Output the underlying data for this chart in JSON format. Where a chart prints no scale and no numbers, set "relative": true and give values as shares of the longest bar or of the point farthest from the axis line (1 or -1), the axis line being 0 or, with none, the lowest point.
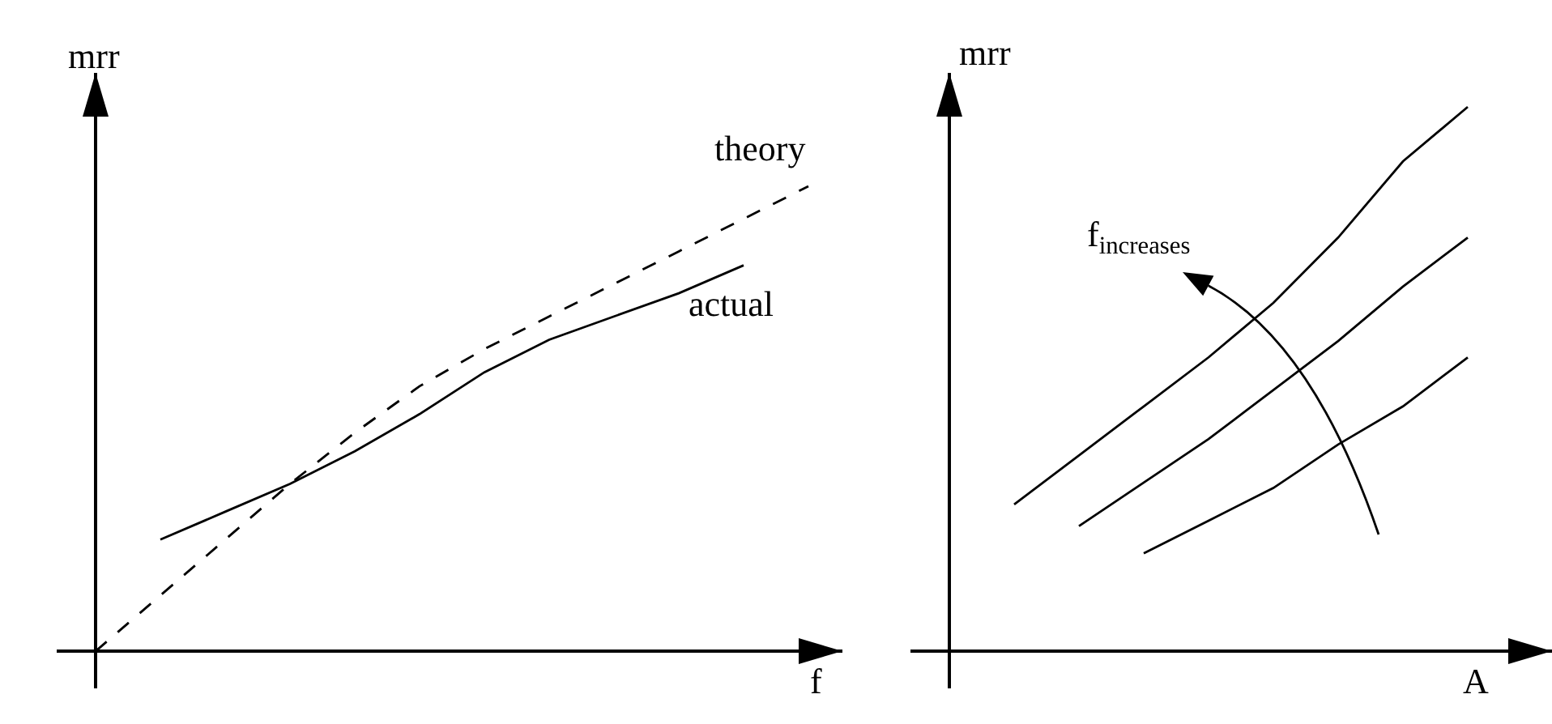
{
  "chart_data": [
    {
      "type": "line",
      "relative": true,
      "xlabel": "f",
      "ylabel": "mrr",
      "categories": [
        null,
        null,
        null,
        null,
        null,
        null,
        null,
        null,
        null,
        null,
        null,
        null
      ],
      "series": [
        {
          "name": "theory",
          "color": "#000000",
          "line_style": "dashed",
          "values": [
            0,
            0.12,
            0.24,
            0.36,
            0.47,
            0.57,
            0.65,
            0.72,
            0.79,
            0.86,
            0.93,
            1
          ]
        },
        {
          "name": "actual",
          "color": "#000000",
          "line_style": "solid",
          "values": [
            null,
            0.24,
            0.3,
            0.36,
            0.43,
            0.51,
            0.6,
            0.67,
            0.72,
            0.77,
            0.83,
            null
          ]
        }
      ]
    },
    {
      "type": "line",
      "relative": true,
      "xlabel": "A",
      "ylabel": "mrr",
      "annotations": [
        "f$_{increases}$"
      ],
      "categories": [
        null,
        null,
        null,
        null,
        null,
        null,
        null,
        null,
        null,
        null
      ],
      "series": [
        {
          "color": "#000000",
          "values": [
            null,
            0.27,
            0.36,
            0.45,
            0.54,
            0.64,
            0.76,
            0.9,
            1,
            null
          ]
        },
        {
          "color": "#000000",
          "values": [
            null,
            null,
            0.23,
            0.31,
            0.39,
            0.48,
            0.57,
            0.67,
            0.76,
            null
          ]
        },
        {
          "color": "#000000",
          "values": [
            null,
            null,
            null,
            0.18,
            0.24,
            0.3,
            0.38,
            0.45,
            0.54,
            null
          ]
        }
      ]
    }
  ]
}
